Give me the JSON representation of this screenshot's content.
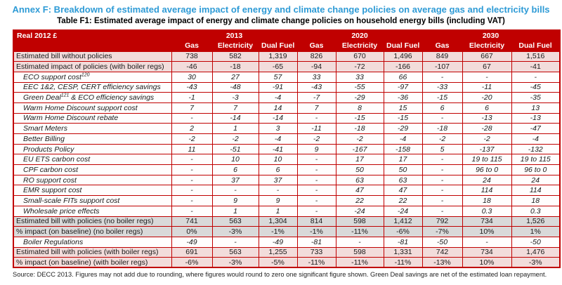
{
  "page": {
    "title": "Annex F: Breakdown of estimated average impact of energy and climate change policies on average gas and electricity bills",
    "subtitle": "Table F1: Estimated average impact of energy and climate change policies on household energy bills (including VAT)",
    "source_note": "Source: DECC 2013. Figures may not add due to rounding, where figures would round to zero one significant figure shown. Green Deal savings are net of the estimated loan repayment."
  },
  "colors": {
    "header_background": "#c00000",
    "table_border": "#c00000",
    "summary_row_pink": "#f2dcdb",
    "summary_row_gray": "#d9d9d9",
    "title_blue": "#2e9bd6"
  },
  "table": {
    "corner_label": "Real 2012 £",
    "year_groups": [
      "2013",
      "2020",
      "2030"
    ],
    "sub_headers": [
      "Gas",
      "Electricity",
      "Dual Fuel"
    ],
    "rows": [
      {
        "label": "Estimated bill without policies",
        "style": "pink",
        "italic": false,
        "values": [
          "738",
          "582",
          "1,319",
          "826",
          "670",
          "1,496",
          "849",
          "667",
          "1,516"
        ]
      },
      {
        "label": "Estimated impact of policies (with boiler regs)",
        "style": "pink",
        "italic": false,
        "values": [
          "-46",
          "-18",
          "-65",
          "-94",
          "-72",
          "-166",
          "-107",
          "67",
          "-41"
        ]
      },
      {
        "label": "ECO support cost",
        "sup": "120",
        "post": "",
        "style": "white",
        "italic": true,
        "values": [
          "30",
          "27",
          "57",
          "33",
          "33",
          "66",
          "-",
          "-",
          "-"
        ]
      },
      {
        "label": "EEC 1&2, CESP, CERT efficiency savings",
        "style": "white",
        "italic": true,
        "values": [
          "-43",
          "-48",
          "-91",
          "-43",
          "-55",
          "-97",
          "-33",
          "-11",
          "-45"
        ]
      },
      {
        "label": "Green Deal",
        "sup": "121",
        "post": " & ECO efficiency savings",
        "style": "white",
        "italic": true,
        "values": [
          "-1",
          "-3",
          "-4",
          "-7",
          "-29",
          "-36",
          "-15",
          "-20",
          "-35"
        ]
      },
      {
        "label": "Warm Home Discount support cost",
        "style": "white",
        "italic": true,
        "values": [
          "7",
          "7",
          "14",
          "7",
          "8",
          "15",
          "6",
          "6",
          "13"
        ]
      },
      {
        "label": "Warm Home Discount rebate",
        "style": "white",
        "italic": true,
        "values": [
          "-",
          "-14",
          "-14",
          "-",
          "-15",
          "-15",
          "-",
          "-13",
          "-13"
        ]
      },
      {
        "label": "Smart Meters",
        "style": "white",
        "italic": true,
        "values": [
          "2",
          "1",
          "3",
          "-11",
          "-18",
          "-29",
          "-18",
          "-28",
          "-47"
        ]
      },
      {
        "label": "Better Billing",
        "style": "white",
        "italic": true,
        "values": [
          "-2",
          "-2",
          "-4",
          "-2",
          "-2",
          "-4",
          "-2",
          "-2",
          "-4"
        ]
      },
      {
        "label": "Products Policy",
        "style": "white",
        "italic": true,
        "values": [
          "11",
          "-51",
          "-41",
          "9",
          "-167",
          "-158",
          "5",
          "-137",
          "-132"
        ]
      },
      {
        "label": "EU ETS carbon cost",
        "style": "white",
        "italic": true,
        "values": [
          "-",
          "10",
          "10",
          "-",
          "17",
          "17",
          "-",
          "19 to 115",
          "19 to 115"
        ]
      },
      {
        "label": "CPF carbon cost",
        "style": "white",
        "italic": true,
        "values": [
          "-",
          "6",
          "6",
          "-",
          "50",
          "50",
          "-",
          "96 to 0",
          "96 to 0"
        ]
      },
      {
        "label": "RO support cost",
        "style": "white",
        "italic": true,
        "values": [
          "-",
          "37",
          "37",
          "-",
          "63",
          "63",
          "-",
          "24",
          "24"
        ]
      },
      {
        "label": "EMR support cost",
        "style": "white",
        "italic": true,
        "values": [
          "-",
          "-",
          "-",
          "-",
          "47",
          "47",
          "-",
          "114",
          "114"
        ]
      },
      {
        "label": "Small-scale FITs support cost",
        "style": "white",
        "italic": true,
        "values": [
          "-",
          "9",
          "9",
          "-",
          "22",
          "22",
          "-",
          "18",
          "18"
        ]
      },
      {
        "label": "Wholesale price effects",
        "style": "white",
        "italic": true,
        "values": [
          "-",
          "1",
          "1",
          "-",
          "-24",
          "-24",
          "-",
          "0.3",
          "0.3"
        ]
      },
      {
        "label": "Estimated bill with policies (no boiler regs)",
        "style": "gray",
        "italic": false,
        "values": [
          "741",
          "563",
          "1,304",
          "814",
          "598",
          "1,412",
          "792",
          "734",
          "1,526"
        ]
      },
      {
        "label": "% impact (on baseline) (no boiler regs)",
        "style": "gray",
        "italic": false,
        "values": [
          "0%",
          "-3%",
          "-1%",
          "-1%",
          "-11%",
          "-6%",
          "-7%",
          "10%",
          "1%"
        ]
      },
      {
        "label": "Boiler Regulations",
        "style": "white",
        "italic": true,
        "values": [
          "-49",
          "-",
          "-49",
          "-81",
          "-",
          "-81",
          "-50",
          "-",
          "-50"
        ]
      },
      {
        "label": "Estimated bill with policies (with boiler regs)",
        "style": "pink",
        "italic": false,
        "values": [
          "691",
          "563",
          "1,255",
          "733",
          "598",
          "1,331",
          "742",
          "734",
          "1,476"
        ]
      },
      {
        "label": "% impact (on baseline) (with boiler regs)",
        "style": "pink",
        "italic": false,
        "values": [
          "-6%",
          "-3%",
          "-5%",
          "-11%",
          "-11%",
          "-11%",
          "-13%",
          "10%",
          "-3%"
        ]
      }
    ]
  }
}
